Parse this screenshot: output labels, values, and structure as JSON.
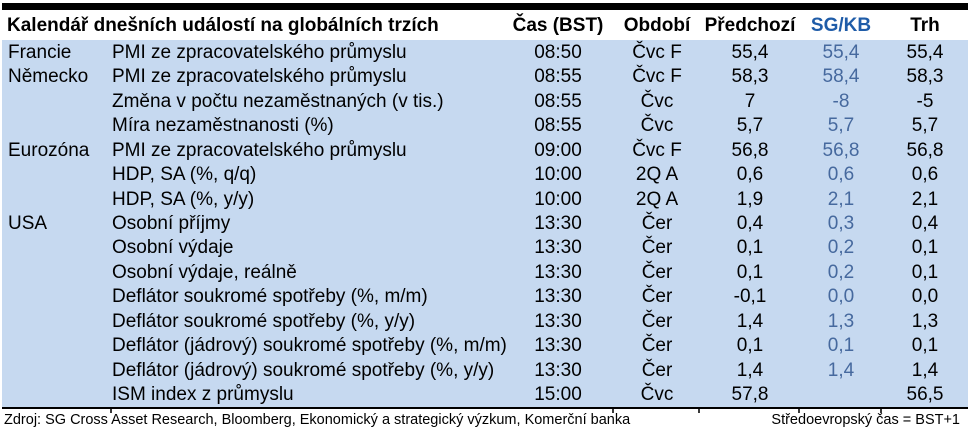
{
  "title": "Kalendář dnešních událostí na globálních trzích",
  "columns": {
    "time": "Čas (BST)",
    "period": "Období",
    "previous": "Předchozí",
    "sgkb": "SG/KB",
    "market": "Trh"
  },
  "rows": [
    {
      "region": "Francie",
      "event": "PMI ze zpracovatelského průmyslu",
      "time": "08:50",
      "period": "Čvc F",
      "previous": "55,4",
      "sgkb": "55,4",
      "market": "55,4"
    },
    {
      "region": "Německo",
      "event": "PMI ze zpracovatelského průmyslu",
      "time": "08:55",
      "period": "Čvc F",
      "previous": "58,3",
      "sgkb": "58,4",
      "market": "58,3"
    },
    {
      "region": "",
      "event": "Změna v počtu nezaměstnaných (v tis.)",
      "time": "08:55",
      "period": "Čvc",
      "previous": "7",
      "sgkb": "-8",
      "market": "-5"
    },
    {
      "region": "",
      "event": "Míra nezaměstnanosti (%)",
      "time": "08:55",
      "period": "Čvc",
      "previous": "5,7",
      "sgkb": "5,7",
      "market": "5,7"
    },
    {
      "region": "Eurozóna",
      "event": "PMI ze zpracovatelského průmyslu",
      "time": "09:00",
      "period": "Čvc F",
      "previous": "56,8",
      "sgkb": "56,8",
      "market": "56,8"
    },
    {
      "region": "",
      "event": "HDP, SA (%, q/q)",
      "time": "10:00",
      "period": "2Q A",
      "previous": "0,6",
      "sgkb": "0,6",
      "market": "0,6"
    },
    {
      "region": "",
      "event": "HDP, SA (%, y/y)",
      "time": "10:00",
      "period": "2Q A",
      "previous": "1,9",
      "sgkb": "2,1",
      "market": "2,1"
    },
    {
      "region": "USA",
      "event": "Osobní příjmy",
      "time": "13:30",
      "period": "Čer",
      "previous": "0,4",
      "sgkb": "0,3",
      "market": "0,4"
    },
    {
      "region": "",
      "event": "Osobní výdaje",
      "time": "13:30",
      "period": "Čer",
      "previous": "0,1",
      "sgkb": "0,2",
      "market": "0,1"
    },
    {
      "region": "",
      "event": "Osobní výdaje, reálně",
      "time": "13:30",
      "period": "Čer",
      "previous": "0,1",
      "sgkb": "0,2",
      "market": "0,1"
    },
    {
      "region": "",
      "event": "Deflátor soukromé spotřeby (%, m/m)",
      "time": "13:30",
      "period": "Čer",
      "previous": "-0,1",
      "sgkb": "0,0",
      "market": "0,0"
    },
    {
      "region": "",
      "event": "Deflátor soukromé spotřeby (%, y/y)",
      "time": "13:30",
      "period": "Čer",
      "previous": "1,4",
      "sgkb": "1,3",
      "market": "1,3"
    },
    {
      "region": "",
      "event": "Deflátor (jádrový) soukromé spotřeby (%, m/m)",
      "time": "13:30",
      "period": "Čer",
      "previous": "0,1",
      "sgkb": "0,1",
      "market": "0,1"
    },
    {
      "region": "",
      "event": "Deflátor (jádrový) soukromé spotřeby (%, y/y)",
      "time": "13:30",
      "period": "Čer",
      "previous": "1,4",
      "sgkb": "1,4",
      "market": "1,4"
    },
    {
      "region": "",
      "event": "ISM index z průmyslu",
      "time": "15:00",
      "period": "Čvc",
      "previous": "57,8",
      "sgkb": "",
      "market": "56,5"
    }
  ],
  "footer": {
    "source": "Zdroj: SG Cross Asset Research, Bloomberg, Ekonomický a strategický výzkum, Komerční banka",
    "note": "Středoevropský čas = BST+1"
  },
  "colors": {
    "body_bg": "#C6D9F0",
    "sgkb_header": "#1F5CA8",
    "sgkb_value": "#46699E",
    "bar": "#000000"
  }
}
